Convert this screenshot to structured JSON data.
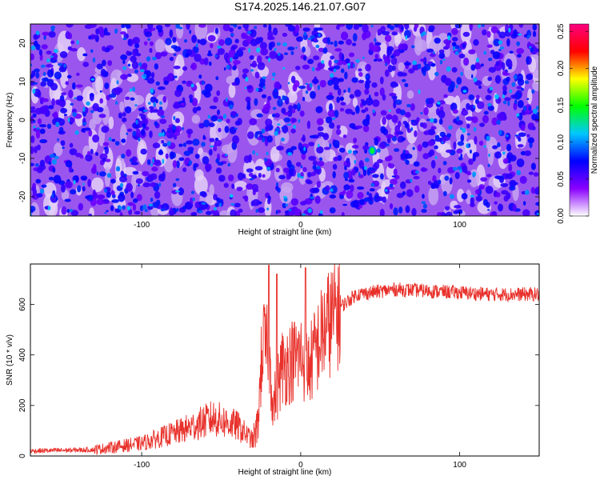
{
  "title": "S174.2025.146.21.07.G07",
  "chart_data": [
    {
      "type": "heatmap",
      "xlabel": "Height of straight line (km)",
      "ylabel": "Frequency (Hz)",
      "xlim": [
        -170,
        150
      ],
      "ylim": [
        -25,
        25
      ],
      "x_ticks": [
        -100,
        0,
        100
      ],
      "y_ticks": [
        -20,
        -10,
        0,
        10,
        20
      ],
      "colorbar": {
        "label": "Normalized spectral amplitude",
        "range": [
          0.0,
          0.26
        ],
        "ticks": [
          0.0,
          0.05,
          0.1,
          0.15,
          0.2,
          0.25
        ],
        "tick_labels": [
          "0.00",
          "0.05",
          "0.10",
          "0.15",
          "0.20",
          "0.25"
        ],
        "colors": [
          "#ffffff",
          "#8a00ff",
          "#0000ff",
          "#00c8ff",
          "#00ff00",
          "#ffff00",
          "#ff0000",
          "#ff0080"
        ]
      },
      "hotspots": [
        {
          "x": 45,
          "y": -8,
          "value": 0.14
        }
      ]
    },
    {
      "type": "line",
      "xlabel": "Height of straight line (km)",
      "ylabel": "SNR (10 * v/v)",
      "xlim": [
        -170,
        150
      ],
      "ylim": [
        0,
        760
      ],
      "x_ticks": [
        -100,
        0,
        100
      ],
      "y_ticks": [
        0,
        200,
        400,
        600
      ],
      "line_color": "#e8302a",
      "envelope": [
        {
          "x": -170,
          "y": 20
        },
        {
          "x": -130,
          "y": 25
        },
        {
          "x": -100,
          "y": 50
        },
        {
          "x": -75,
          "y": 100
        },
        {
          "x": -55,
          "y": 150
        },
        {
          "x": -40,
          "y": 120
        },
        {
          "x": -30,
          "y": 60
        },
        {
          "x": -27,
          "y": 120
        },
        {
          "x": -24,
          "y": 450
        },
        {
          "x": -20,
          "y": 400
        },
        {
          "x": -17,
          "y": 200
        },
        {
          "x": -12,
          "y": 350
        },
        {
          "x": -5,
          "y": 380
        },
        {
          "x": 0,
          "y": 400
        },
        {
          "x": 5,
          "y": 350
        },
        {
          "x": 15,
          "y": 500
        },
        {
          "x": 25,
          "y": 590
        },
        {
          "x": 35,
          "y": 640
        },
        {
          "x": 60,
          "y": 660
        },
        {
          "x": 90,
          "y": 650
        },
        {
          "x": 120,
          "y": 640
        },
        {
          "x": 150,
          "y": 640
        }
      ],
      "peaks": [
        {
          "x": -20,
          "y": 755
        },
        {
          "x": -15,
          "y": 720
        },
        {
          "x": 3,
          "y": 745
        }
      ]
    }
  ]
}
